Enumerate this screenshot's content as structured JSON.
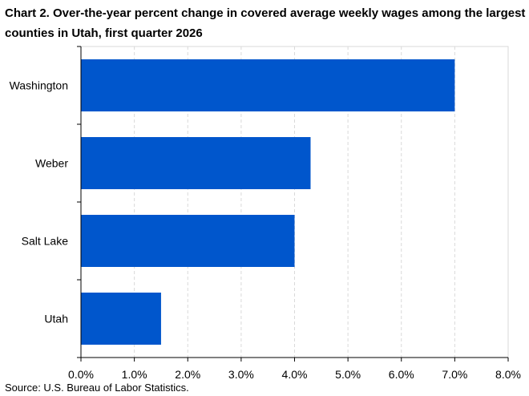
{
  "chart_data": {
    "type": "bar",
    "orientation": "horizontal",
    "title": "Chart 2. Over-the-year percent change in covered average weekly wages among the largest counties in Utah, first quarter 2026",
    "categories": [
      "Washington",
      "Weber",
      "Salt Lake",
      "Utah"
    ],
    "values": [
      7.0,
      4.3,
      4.0,
      1.5
    ],
    "x_ticks": [
      "0.0%",
      "1.0%",
      "2.0%",
      "3.0%",
      "4.0%",
      "5.0%",
      "6.0%",
      "7.0%",
      "8.0%"
    ],
    "xlim": [
      0,
      8
    ],
    "xlabel": "",
    "ylabel": "",
    "grid": "vertical dashed",
    "bar_color": "#0056CC"
  },
  "source": "Source: U.S. Bureau of Labor Statistics."
}
